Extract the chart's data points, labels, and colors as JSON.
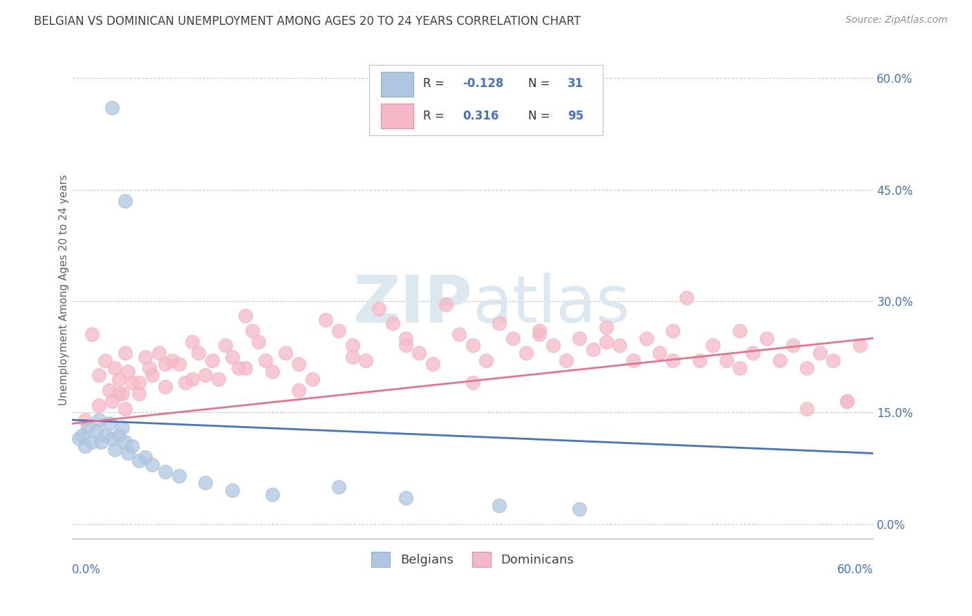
{
  "title": "BELGIAN VS DOMINICAN UNEMPLOYMENT AMONG AGES 20 TO 24 YEARS CORRELATION CHART",
  "source": "Source: ZipAtlas.com",
  "ylabel": "Unemployment Among Ages 20 to 24 years",
  "ytick_labels": [
    "0.0%",
    "15.0%",
    "30.0%",
    "45.0%",
    "60.0%"
  ],
  "ytick_values": [
    0.0,
    15.0,
    30.0,
    45.0,
    60.0
  ],
  "xlim": [
    0.0,
    60.0
  ],
  "ylim": [
    -2.0,
    65.0
  ],
  "belgian_R": -0.128,
  "belgian_N": 31,
  "dominican_R": 0.316,
  "dominican_N": 95,
  "belgian_color": "#aec6df",
  "dominican_color": "#f5b8c8",
  "belgian_line_color": "#4472c4",
  "dominican_line_color": "#e8728a",
  "axis_label_color": "#4472c4",
  "title_color": "#404040",
  "source_color": "#909090",
  "grid_color": "#c8c8c8",
  "watermark_color": "#dce8f0",
  "legend_border_color": "#c0c0c0",
  "bel_trend_x0": 0.0,
  "bel_trend_y0": 14.0,
  "bel_trend_x1": 60.0,
  "bel_trend_y1": 9.5,
  "dom_trend_x0": 0.0,
  "dom_trend_y0": 13.5,
  "dom_trend_x1": 60.0,
  "dom_trend_y1": 25.0,
  "bel_x": [
    0.5,
    0.8,
    1.0,
    1.2,
    1.5,
    1.8,
    2.0,
    2.2,
    2.5,
    2.8,
    3.0,
    3.2,
    3.5,
    3.8,
    4.0,
    4.2,
    4.5,
    5.0,
    5.5,
    6.0,
    7.0,
    8.0,
    10.0,
    12.0,
    15.0,
    20.0,
    25.0,
    32.0,
    38.0,
    3.0,
    4.0
  ],
  "bel_y": [
    11.5,
    12.0,
    10.5,
    13.0,
    11.0,
    12.5,
    14.0,
    11.0,
    12.0,
    13.5,
    11.5,
    10.0,
    12.0,
    13.0,
    11.0,
    9.5,
    10.5,
    8.5,
    9.0,
    8.0,
    7.0,
    6.5,
    5.5,
    4.5,
    4.0,
    5.0,
    3.5,
    2.5,
    2.0,
    56.0,
    43.5
  ],
  "dom_x": [
    1.0,
    1.5,
    2.0,
    2.5,
    2.8,
    3.0,
    3.2,
    3.5,
    3.8,
    4.0,
    4.2,
    4.5,
    5.0,
    5.5,
    5.8,
    6.0,
    6.5,
    7.0,
    7.5,
    8.0,
    8.5,
    9.0,
    9.5,
    10.0,
    10.5,
    11.0,
    11.5,
    12.0,
    12.5,
    13.0,
    13.5,
    14.0,
    14.5,
    15.0,
    16.0,
    17.0,
    18.0,
    19.0,
    20.0,
    21.0,
    22.0,
    23.0,
    24.0,
    25.0,
    26.0,
    27.0,
    28.0,
    29.0,
    30.0,
    31.0,
    32.0,
    33.0,
    34.0,
    35.0,
    36.0,
    37.0,
    38.0,
    39.0,
    40.0,
    41.0,
    42.0,
    43.0,
    44.0,
    45.0,
    46.0,
    47.0,
    48.0,
    49.0,
    50.0,
    51.0,
    52.0,
    53.0,
    54.0,
    55.0,
    56.0,
    57.0,
    58.0,
    59.0,
    2.0,
    3.5,
    5.0,
    7.0,
    9.0,
    13.0,
    17.0,
    21.0,
    25.0,
    30.0,
    35.0,
    40.0,
    45.0,
    50.0,
    55.0,
    58.0,
    4.0
  ],
  "dom_y": [
    14.0,
    25.5,
    20.0,
    22.0,
    18.0,
    16.5,
    21.0,
    19.5,
    17.5,
    23.0,
    20.5,
    19.0,
    17.5,
    22.5,
    21.0,
    20.0,
    23.0,
    18.5,
    22.0,
    21.5,
    19.0,
    24.5,
    23.0,
    20.0,
    22.0,
    19.5,
    24.0,
    22.5,
    21.0,
    28.0,
    26.0,
    24.5,
    22.0,
    20.5,
    23.0,
    21.5,
    19.5,
    27.5,
    26.0,
    24.0,
    22.0,
    29.0,
    27.0,
    25.0,
    23.0,
    21.5,
    29.5,
    25.5,
    24.0,
    22.0,
    27.0,
    25.0,
    23.0,
    26.0,
    24.0,
    22.0,
    25.0,
    23.5,
    26.5,
    24.0,
    22.0,
    25.0,
    23.0,
    26.0,
    30.5,
    22.0,
    24.0,
    22.0,
    21.0,
    23.0,
    25.0,
    22.0,
    24.0,
    21.0,
    23.0,
    22.0,
    16.5,
    24.0,
    16.0,
    17.5,
    19.0,
    21.5,
    19.5,
    21.0,
    18.0,
    22.5,
    24.0,
    19.0,
    25.5,
    24.5,
    22.0,
    26.0,
    15.5,
    16.5,
    15.5
  ]
}
